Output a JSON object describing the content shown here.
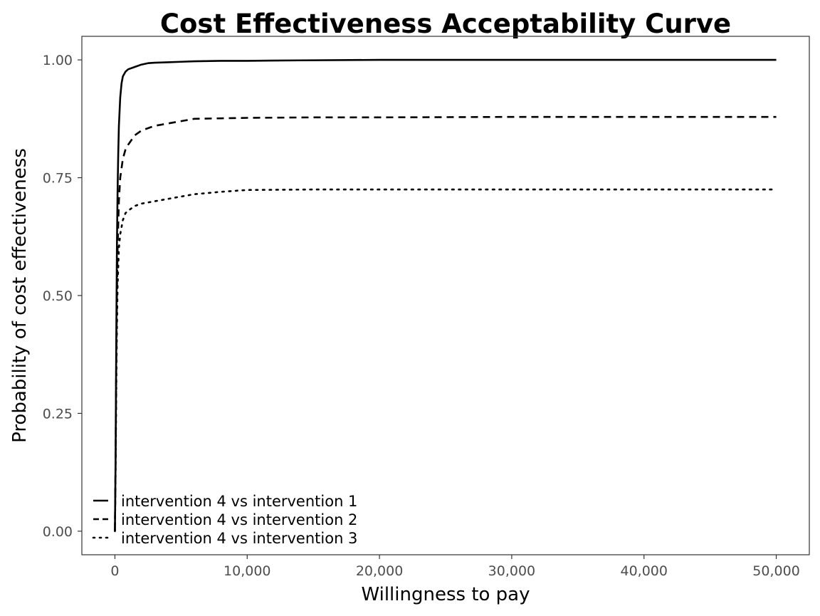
{
  "chart_data": {
    "type": "line",
    "title": "Cost Effectiveness Acceptability Curve",
    "xlabel": "Willingness to pay",
    "ylabel": "Probability of cost effectiveness",
    "xlim": [
      -2500,
      52500
    ],
    "ylim": [
      -0.05,
      1.05
    ],
    "x_ticks": [
      0,
      10000,
      20000,
      30000,
      40000,
      50000
    ],
    "x_tick_labels": [
      "0",
      "10,000",
      "20,000",
      "30,000",
      "40,000",
      "50,000"
    ],
    "y_ticks": [
      0,
      0.25,
      0.5,
      0.75,
      1.0
    ],
    "y_tick_labels": [
      "0.00",
      "0.25",
      "0.50",
      "0.75",
      "1.00"
    ],
    "grid": false,
    "legend_position": "bottom-left",
    "series": [
      {
        "name": "intervention 4 vs intervention 1",
        "line_style": "solid",
        "color": "#000000",
        "x": [
          0,
          50,
          100,
          150,
          200,
          250,
          300,
          400,
          500,
          600,
          800,
          1000,
          1500,
          2000,
          2500,
          3000,
          4000,
          5000,
          6000,
          8000,
          10000,
          14000,
          20000,
          30000,
          40000,
          50000
        ],
        "y": [
          0.0,
          0.15,
          0.4,
          0.6,
          0.72,
          0.8,
          0.86,
          0.92,
          0.95,
          0.965,
          0.975,
          0.98,
          0.985,
          0.99,
          0.993,
          0.994,
          0.995,
          0.996,
          0.997,
          0.998,
          0.998,
          0.999,
          1.0,
          1.0,
          1.0,
          1.0
        ]
      },
      {
        "name": "intervention 4 vs intervention 2",
        "line_style": "dashed",
        "color": "#000000",
        "x": [
          0,
          50,
          100,
          150,
          200,
          300,
          400,
          600,
          800,
          1000,
          1500,
          2000,
          3000,
          4000,
          5000,
          6000,
          8000,
          10000,
          15000,
          20000,
          30000,
          40000,
          50000
        ],
        "y": [
          0.0,
          0.15,
          0.35,
          0.5,
          0.6,
          0.7,
          0.75,
          0.79,
          0.81,
          0.82,
          0.84,
          0.85,
          0.86,
          0.865,
          0.87,
          0.875,
          0.876,
          0.877,
          0.878,
          0.878,
          0.879,
          0.879,
          0.879
        ]
      },
      {
        "name": "intervention 4 vs intervention 3",
        "line_style": "dotted",
        "color": "#000000",
        "x": [
          0,
          50,
          100,
          150,
          200,
          300,
          400,
          600,
          800,
          1000,
          1500,
          2000,
          3000,
          4000,
          5000,
          6000,
          8000,
          10000,
          15000,
          20000,
          30000,
          40000,
          50000
        ],
        "y": [
          0.0,
          0.12,
          0.3,
          0.43,
          0.52,
          0.6,
          0.63,
          0.66,
          0.675,
          0.68,
          0.69,
          0.695,
          0.7,
          0.705,
          0.71,
          0.715,
          0.72,
          0.724,
          0.725,
          0.725,
          0.725,
          0.725,
          0.725
        ]
      }
    ]
  }
}
